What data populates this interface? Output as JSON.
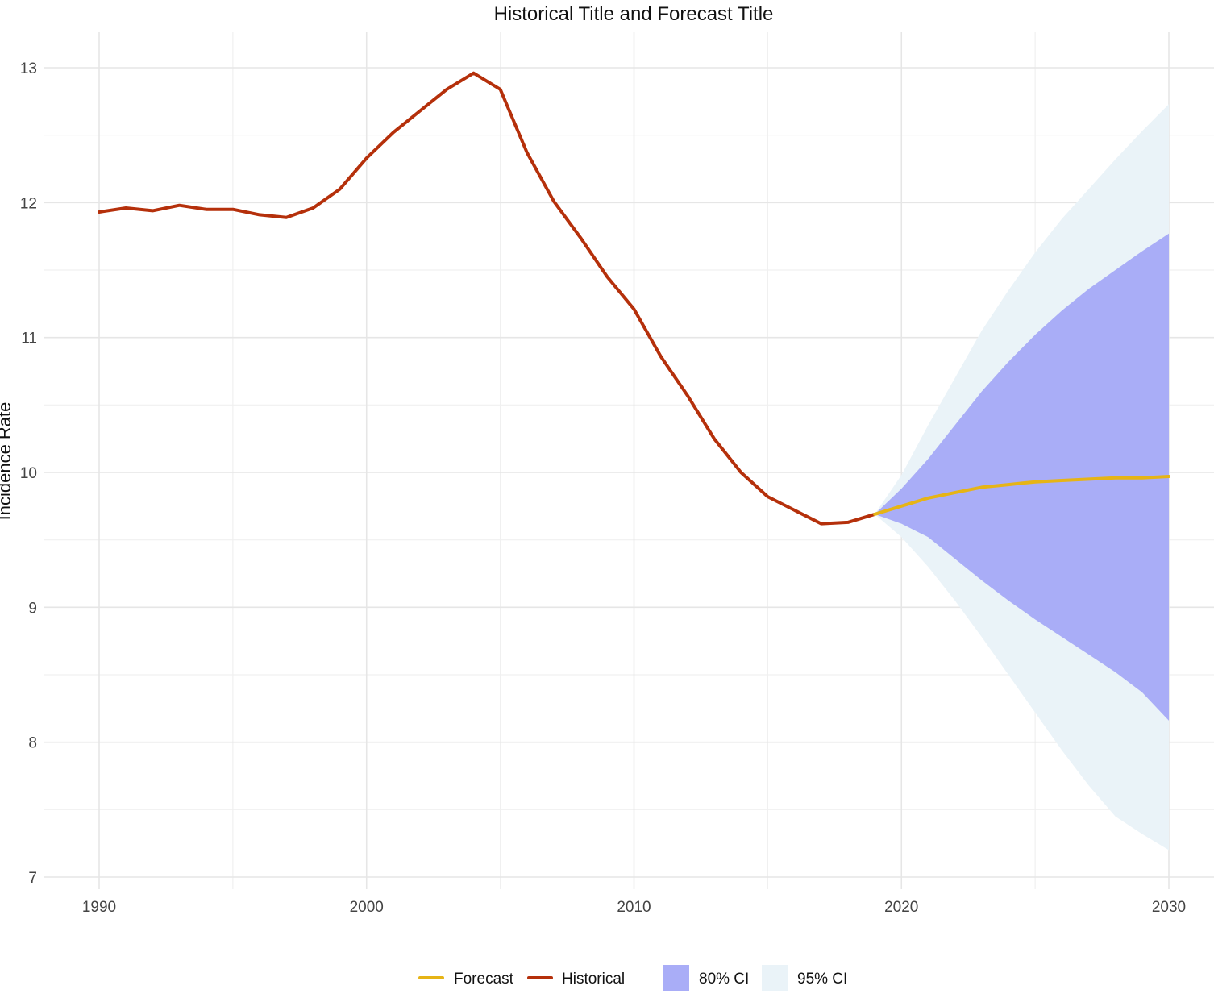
{
  "chart_data": {
    "type": "line",
    "title": "Historical Title and Forecast Title",
    "xlabel": "",
    "ylabel": "Incidence Rate",
    "xlim": [
      1990,
      2030
    ],
    "ylim": [
      7,
      13
    ],
    "x_ticks": [
      1990,
      2000,
      2010,
      2020,
      2030
    ],
    "y_ticks": [
      7,
      8,
      9,
      10,
      11,
      12,
      13
    ],
    "grid": true,
    "legend_position": "bottom",
    "colors": {
      "historical": "#b5300b",
      "forecast": "#e6b416",
      "ci80": "#a9adf7",
      "ci95": "#eaf3f8"
    },
    "series": [
      {
        "name": "Historical",
        "x": [
          1990,
          1991,
          1992,
          1993,
          1994,
          1995,
          1996,
          1997,
          1998,
          1999,
          2000,
          2001,
          2002,
          2003,
          2004,
          2005,
          2006,
          2007,
          2008,
          2009,
          2010,
          2011,
          2012,
          2013,
          2014,
          2015,
          2016,
          2017,
          2018,
          2019
        ],
        "values": [
          11.93,
          11.96,
          11.94,
          11.98,
          11.95,
          11.95,
          11.91,
          11.89,
          11.96,
          12.1,
          12.33,
          12.52,
          12.68,
          12.84,
          12.96,
          12.84,
          12.37,
          12.01,
          11.74,
          11.45,
          11.21,
          10.86,
          10.57,
          10.25,
          10.0,
          9.82,
          9.72,
          9.62,
          9.63,
          9.69
        ]
      },
      {
        "name": "Forecast",
        "x": [
          2019,
          2020,
          2021,
          2022,
          2023,
          2024,
          2025,
          2026,
          2027,
          2028,
          2029,
          2030
        ],
        "values": [
          9.69,
          9.75,
          9.81,
          9.85,
          9.89,
          9.91,
          9.93,
          9.94,
          9.95,
          9.96,
          9.96,
          9.97
        ]
      }
    ],
    "intervals": [
      {
        "name": "80% CI",
        "x": [
          2019,
          2020,
          2021,
          2022,
          2023,
          2024,
          2025,
          2026,
          2027,
          2028,
          2029,
          2030
        ],
        "lower": [
          9.69,
          9.62,
          9.52,
          9.36,
          9.2,
          9.05,
          8.91,
          8.78,
          8.65,
          8.52,
          8.37,
          8.16
        ],
        "upper": [
          9.69,
          9.88,
          10.1,
          10.35,
          10.6,
          10.82,
          11.02,
          11.2,
          11.36,
          11.5,
          11.64,
          11.77
        ]
      },
      {
        "name": "95% CI",
        "x": [
          2019,
          2020,
          2021,
          2022,
          2023,
          2024,
          2025,
          2026,
          2027,
          2028,
          2029,
          2030
        ],
        "lower": [
          9.69,
          9.52,
          9.3,
          9.05,
          8.78,
          8.5,
          8.22,
          7.94,
          7.68,
          7.45,
          7.32,
          7.2
        ],
        "upper": [
          9.69,
          9.98,
          10.35,
          10.7,
          11.05,
          11.35,
          11.63,
          11.88,
          12.1,
          12.32,
          12.53,
          12.73
        ]
      }
    ],
    "legend": [
      {
        "label": "Forecast",
        "kind": "line",
        "color": "#e6b416"
      },
      {
        "label": "Historical",
        "kind": "line",
        "color": "#b5300b"
      },
      {
        "label": "80% CI",
        "kind": "fill",
        "color": "#a9adf7"
      },
      {
        "label": "95% CI",
        "kind": "fill",
        "color": "#eaf3f8"
      }
    ]
  }
}
